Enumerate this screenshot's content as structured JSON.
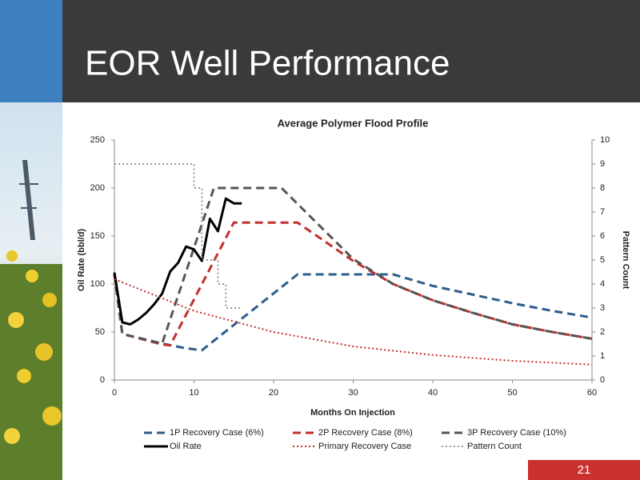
{
  "slide": {
    "title": "EOR Well Performance",
    "page_number": "21"
  },
  "chart_data": {
    "type": "line",
    "title": "Average Polymer Flood Profile",
    "x_label": "Months On Injection",
    "y_label": "Oil Rate (bbl/d)",
    "y2_label": "Pattern Count",
    "xlim": [
      0,
      60
    ],
    "xticks": [
      0,
      10,
      20,
      30,
      40,
      50,
      60
    ],
    "ylim": [
      0,
      250
    ],
    "yticks": [
      0,
      50,
      100,
      150,
      200,
      250
    ],
    "y2lim": [
      0,
      10
    ],
    "y2ticks": [
      0,
      1,
      2,
      3,
      4,
      5,
      6,
      7,
      8,
      9,
      10
    ],
    "series": [
      {
        "name": "1P Recovery Case (6%)",
        "color": "#2c5d8c",
        "style": "dashed",
        "x": [
          0,
          1,
          6,
          9,
          11,
          23,
          35,
          40,
          50,
          55,
          60
        ],
        "values": [
          110,
          48,
          38,
          33,
          31,
          110,
          110,
          98,
          80,
          72,
          65
        ]
      },
      {
        "name": "2P Recovery Case (8%)",
        "color": "#c0302f",
        "style": "dashed",
        "x": [
          0,
          1,
          6,
          7,
          15,
          23,
          30,
          35,
          40,
          45,
          50,
          55,
          60
        ],
        "values": [
          110,
          48,
          37,
          36,
          164,
          164,
          124,
          100,
          83,
          70,
          58,
          50,
          43
        ]
      },
      {
        "name": "3P Recovery Case (10%)",
        "color": "#555555",
        "style": "dashed",
        "x": [
          0,
          1,
          6,
          12.5,
          21,
          30,
          35,
          40,
          45,
          50,
          55,
          60
        ],
        "values": [
          110,
          48,
          38,
          200,
          200,
          126,
          100,
          83,
          70,
          58,
          50,
          43
        ]
      },
      {
        "name": "Oil Rate",
        "color": "#000000",
        "style": "solid",
        "x": [
          0,
          1,
          2,
          3,
          4,
          5,
          6,
          7,
          8,
          9,
          10,
          11,
          12,
          13,
          14,
          15,
          16
        ],
        "values": [
          112,
          60,
          58,
          63,
          70,
          79,
          90,
          113,
          122,
          139,
          136,
          124,
          168,
          155,
          189,
          184,
          184
        ]
      },
      {
        "name": "Primary Recovery Case",
        "color": "#c0302f",
        "style": "dotted",
        "x": [
          0,
          10,
          20,
          30,
          40,
          50,
          60
        ],
        "values": [
          105,
          72,
          50,
          35,
          26,
          20,
          16
        ]
      },
      {
        "name": "Pattern Count",
        "color": "#999999",
        "style": "dotted",
        "axis": "y2",
        "x": [
          0,
          10,
          10,
          11,
          11,
          13,
          13,
          14,
          14,
          16
        ],
        "values": [
          9,
          9,
          8,
          8,
          5,
          5,
          4,
          4,
          3,
          3
        ]
      }
    ]
  }
}
